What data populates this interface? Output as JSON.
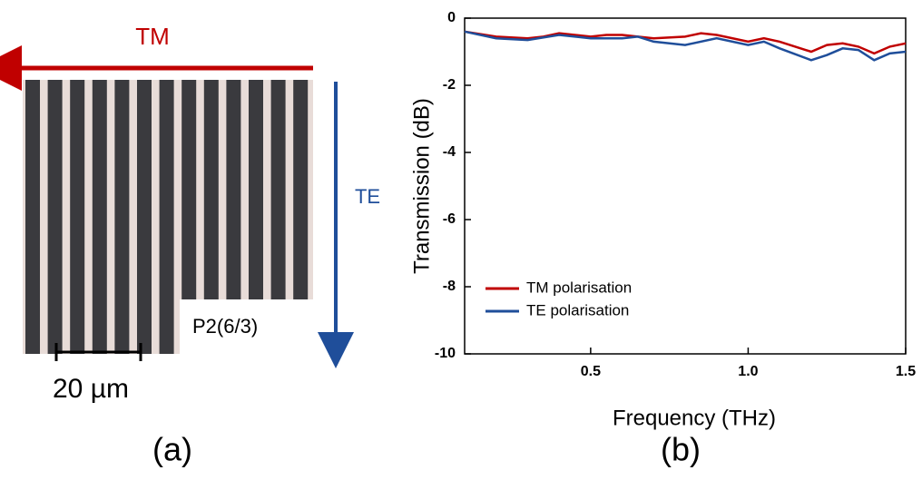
{
  "panel_a": {
    "arrow_top": "TM",
    "arrow_right": "TE",
    "sample_label": "P2(6/3)",
    "scale_bar": "20 µm",
    "caption": "(a)"
  },
  "chart_data": {
    "type": "line",
    "caption": "(b)",
    "x_label": "Frequency (THz)",
    "y_label": "Transmission (dB)",
    "xlim": [
      0.1,
      1.5
    ],
    "ylim": [
      -10,
      0
    ],
    "xticks": [
      0.5,
      {
        "value": 1,
        "label": "1.0"
      },
      1.5
    ],
    "yticks": [
      0,
      -2,
      -4,
      -6,
      -8,
      -10
    ],
    "legend": "lower left",
    "series": [
      {
        "name": "TM polarisation",
        "color": "#c00000",
        "x": [
          0.1,
          0.2,
          0.3,
          0.35,
          0.4,
          0.5,
          0.55,
          0.6,
          0.7,
          0.8,
          0.85,
          0.9,
          1.0,
          1.05,
          1.1,
          1.2,
          1.25,
          1.3,
          1.35,
          1.4,
          1.45,
          1.5
        ],
        "values": [
          -0.4,
          -0.55,
          -0.6,
          -0.55,
          -0.45,
          -0.55,
          -0.5,
          -0.5,
          -0.6,
          -0.55,
          -0.45,
          -0.5,
          -0.7,
          -0.6,
          -0.7,
          -1.0,
          -0.8,
          -0.75,
          -0.85,
          -1.05,
          -0.85,
          -0.75
        ]
      },
      {
        "name": "TE polarisation",
        "color": "#1f4e9a",
        "x": [
          0.1,
          0.2,
          0.3,
          0.4,
          0.5,
          0.6,
          0.65,
          0.7,
          0.8,
          0.9,
          1.0,
          1.05,
          1.1,
          1.2,
          1.25,
          1.3,
          1.35,
          1.4,
          1.45,
          1.5
        ],
        "values": [
          -0.4,
          -0.6,
          -0.65,
          -0.5,
          -0.6,
          -0.6,
          -0.55,
          -0.7,
          -0.8,
          -0.6,
          -0.8,
          -0.7,
          -0.9,
          -1.25,
          -1.1,
          -0.9,
          -0.95,
          -1.25,
          -1.05,
          -1.0
        ]
      }
    ]
  }
}
